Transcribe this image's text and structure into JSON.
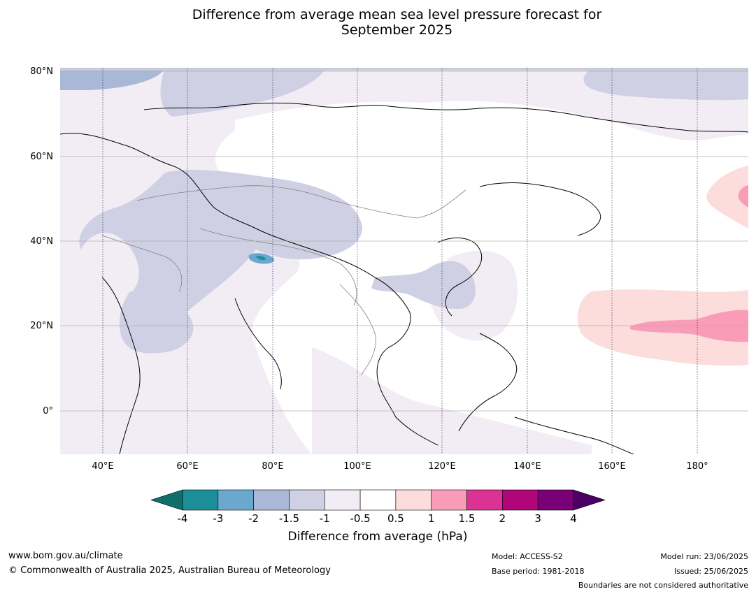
{
  "title_line1": "Difference from average mean sea level pressure forecast for",
  "title_line2": "September 2025",
  "lat_labels": [
    "80°N",
    "60°N",
    "40°N",
    "20°N",
    "0°"
  ],
  "lon_labels": [
    "40°E",
    "60°E",
    "80°E",
    "100°E",
    "120°E",
    "140°E",
    "160°E",
    "180°"
  ],
  "colorbar": {
    "ticks": [
      "-4",
      "-3",
      "-2",
      "-1.5",
      "-1",
      "-0.5",
      "0.5",
      "1",
      "1.5",
      "2",
      "3",
      "4"
    ],
    "colors": [
      "#0f6f6a",
      "#1c8f9a",
      "#6aa8d0",
      "#a8b8d6",
      "#d0d0e4",
      "#f2ecf4",
      "#ffffff",
      "#fddcdc",
      "#f89cb8",
      "#db3394",
      "#b0067a",
      "#7a0078",
      "#4a0060"
    ],
    "label": "Difference from average (hPa)"
  },
  "footer": {
    "website": "www.bom.gov.au/climate",
    "copyright": "© Commonwealth of Australia 2025, Australian Bureau of Meteorology",
    "model": "Model: ACCESS-S2",
    "base_period": "Base period: 1981-2018",
    "model_run": "Model run: 23/06/2025",
    "issued": "Issued: 25/06/2025",
    "disclaimer": "Boundaries are not considered authoritative"
  }
}
